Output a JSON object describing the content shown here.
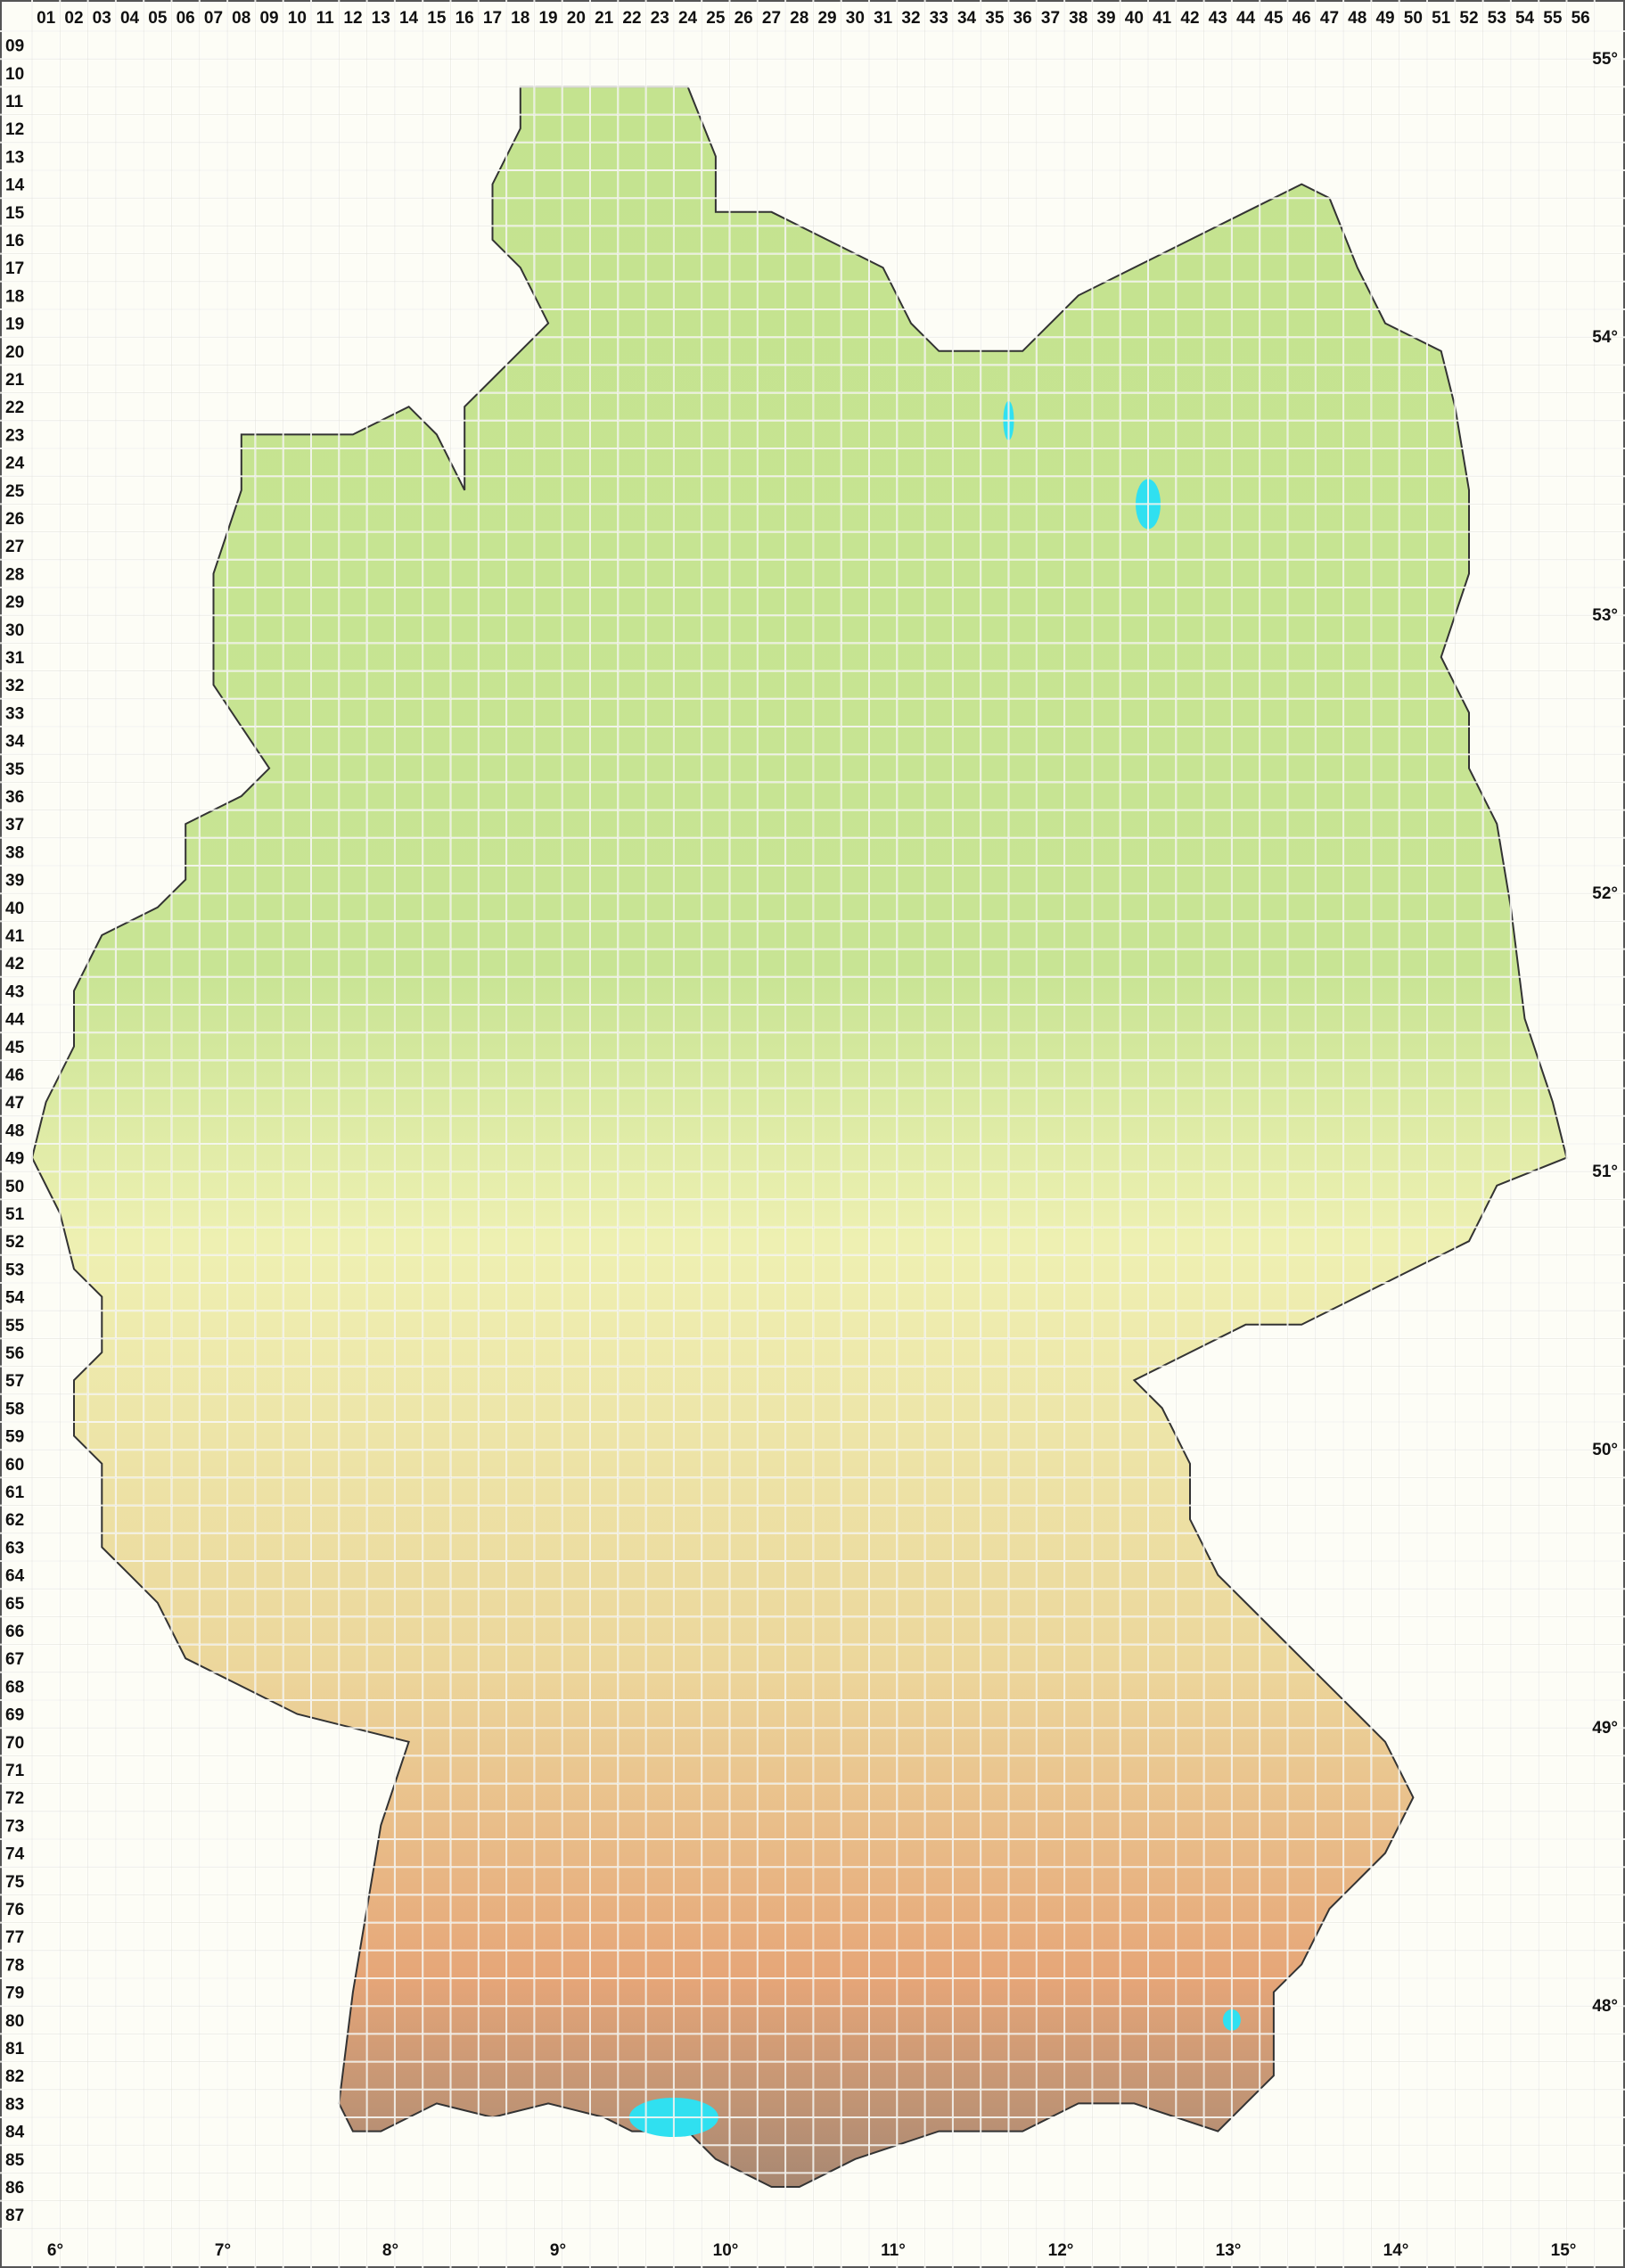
{
  "map": {
    "columns": [
      "01",
      "02",
      "03",
      "04",
      "05",
      "06",
      "07",
      "08",
      "09",
      "10",
      "11",
      "12",
      "13",
      "14",
      "15",
      "16",
      "17",
      "18",
      "19",
      "20",
      "21",
      "22",
      "23",
      "24",
      "25",
      "26",
      "27",
      "28",
      "29",
      "30",
      "31",
      "32",
      "33",
      "34",
      "35",
      "36",
      "37",
      "38",
      "39",
      "40",
      "41",
      "42",
      "43",
      "44",
      "45",
      "46",
      "47",
      "48",
      "49",
      "50",
      "51",
      "52",
      "53",
      "54",
      "55",
      "56"
    ],
    "rows": [
      "09",
      "10",
      "11",
      "12",
      "13",
      "14",
      "15",
      "16",
      "17",
      "18",
      "19",
      "20",
      "21",
      "22",
      "23",
      "24",
      "25",
      "26",
      "27",
      "28",
      "29",
      "30",
      "31",
      "32",
      "33",
      "34",
      "35",
      "36",
      "37",
      "38",
      "39",
      "40",
      "41",
      "42",
      "43",
      "44",
      "45",
      "46",
      "47",
      "48",
      "49",
      "50",
      "51",
      "52",
      "53",
      "54",
      "55",
      "56",
      "57",
      "58",
      "59",
      "60",
      "61",
      "62",
      "63",
      "64",
      "65",
      "66",
      "67",
      "68",
      "69",
      "70",
      "71",
      "72",
      "73",
      "74",
      "75",
      "76",
      "77",
      "78",
      "79",
      "80",
      "81",
      "82",
      "83",
      "84",
      "85",
      "86",
      "87"
    ],
    "longitudes": [
      "6°",
      "7°",
      "8°",
      "9°",
      "10°",
      "11°",
      "12°",
      "13°",
      "14°",
      "15°"
    ],
    "latitudes": [
      "55°",
      "54°",
      "53°",
      "52°",
      "51°",
      "50°",
      "49°",
      "48°"
    ],
    "colors": {
      "lowland": "#bfe08a",
      "upland": "#f2f0b0",
      "highland": "#e4a070",
      "alpine": "#9a8070",
      "water": "#30e0f0",
      "record_marker": "#b00000",
      "grid": "#e4e4da"
    },
    "marker_types": [
      "filled-circle",
      "open-circle",
      "filled-square",
      "open-square"
    ]
  }
}
